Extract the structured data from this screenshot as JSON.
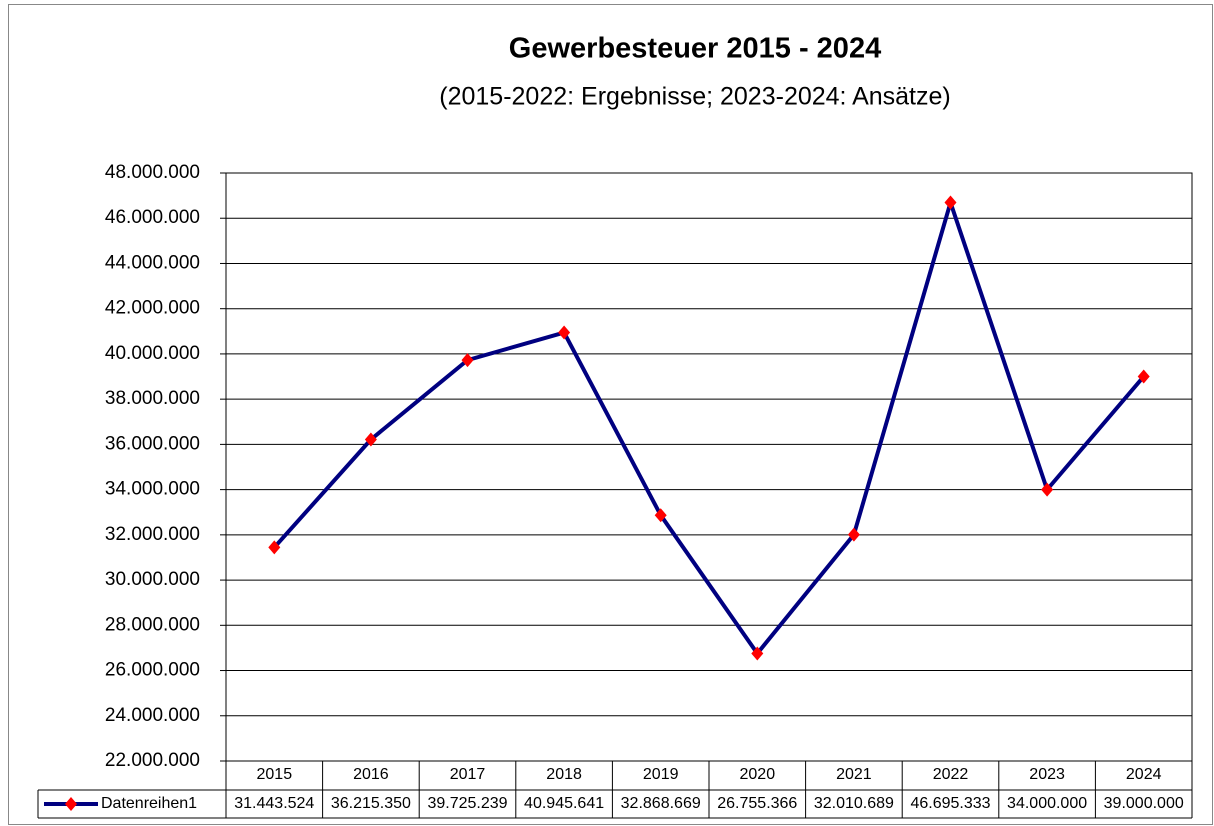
{
  "chart_data": {
    "type": "line",
    "title": "Gewerbesteuer 2015 - 2024",
    "subtitle": "(2015-2022: Ergebnisse; 2023-2024: Ansätze)",
    "categories": [
      "2015",
      "2016",
      "2017",
      "2018",
      "2019",
      "2020",
      "2021",
      "2022",
      "2023",
      "2024"
    ],
    "series": [
      {
        "name": "Datenreihen1",
        "color": "#000080",
        "marker_color": "#ff0000",
        "values": [
          31443524,
          36215350,
          39725239,
          40945641,
          32868669,
          26755366,
          32010689,
          46695333,
          34000000,
          39000000
        ],
        "value_labels": [
          "31.443.524",
          "36.215.350",
          "39.725.239",
          "40.945.641",
          "32.868.669",
          "26.755.366",
          "32.010.689",
          "46.695.333",
          "34.000.000",
          "39.000.000"
        ]
      }
    ],
    "ylim": [
      22000000,
      48000000
    ],
    "yticks": [
      {
        "value": 22000000,
        "label": "22.000.000"
      },
      {
        "value": 24000000,
        "label": "24.000.000"
      },
      {
        "value": 26000000,
        "label": "26.000.000"
      },
      {
        "value": 28000000,
        "label": "28.000.000"
      },
      {
        "value": 30000000,
        "label": "30.000.000"
      },
      {
        "value": 32000000,
        "label": "32.000.000"
      },
      {
        "value": 34000000,
        "label": "34.000.000"
      },
      {
        "value": 36000000,
        "label": "36.000.000"
      },
      {
        "value": 38000000,
        "label": "38.000.000"
      },
      {
        "value": 40000000,
        "label": "40.000.000"
      },
      {
        "value": 42000000,
        "label": "42.000.000"
      },
      {
        "value": 44000000,
        "label": "44.000.000"
      },
      {
        "value": 46000000,
        "label": "46.000.000"
      },
      {
        "value": 48000000,
        "label": "48.000.000"
      }
    ],
    "grid": true
  }
}
